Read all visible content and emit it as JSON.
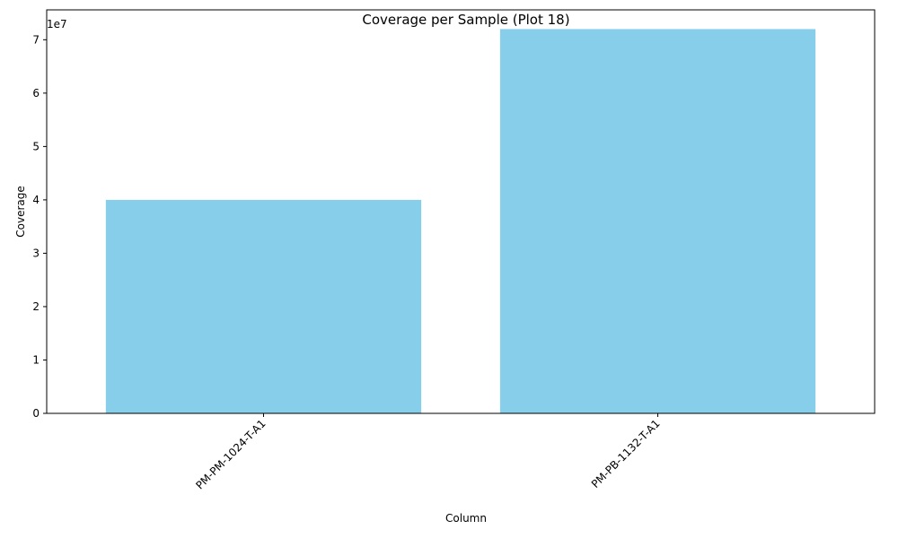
{
  "chart_data": {
    "type": "bar",
    "title": "Coverage per Sample (Plot 18)",
    "xlabel": "Column",
    "ylabel": "Coverage",
    "categories": [
      "PM-PM-1024-T-A1",
      "PM-PB-1132-T-A1"
    ],
    "values": [
      40000000,
      72000000
    ],
    "ylim": [
      0,
      75600000
    ],
    "yticks": [
      0,
      10000000,
      20000000,
      30000000,
      40000000,
      50000000,
      60000000,
      70000000
    ],
    "ytick_labels": [
      "0",
      "1",
      "2",
      "3",
      "4",
      "5",
      "6",
      "7"
    ],
    "y_offset_label": "1e7",
    "bar_color": "#87CEEB",
    "grid": false,
    "legend": "none"
  }
}
